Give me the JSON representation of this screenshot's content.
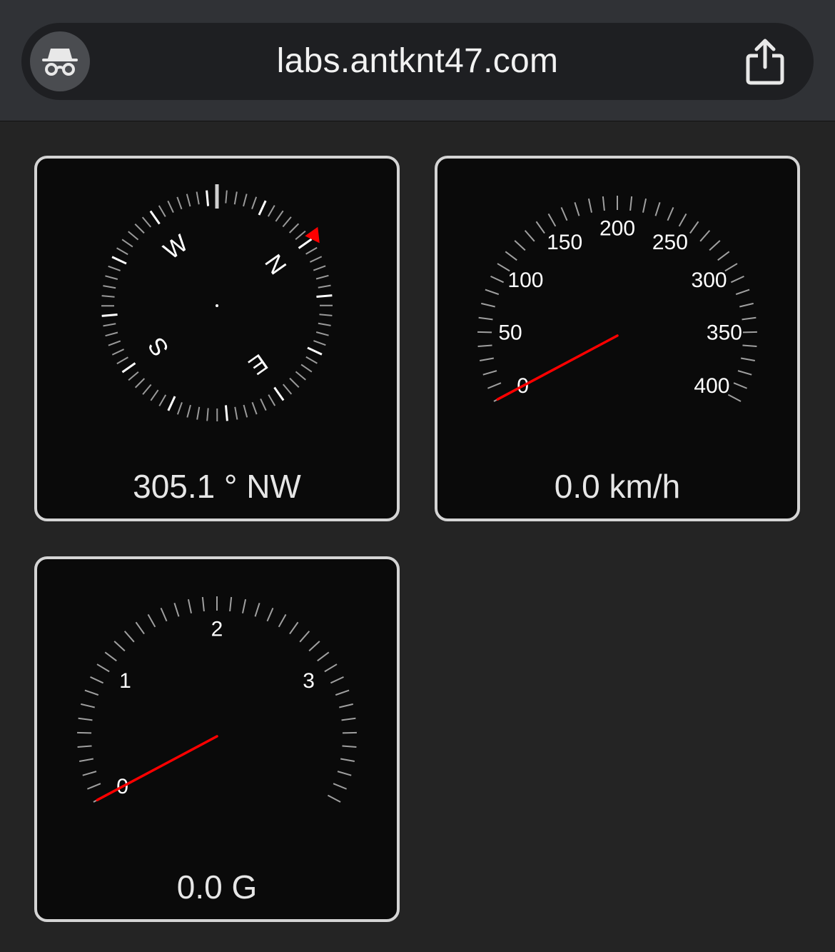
{
  "browser": {
    "url": "labs.antknt47.com",
    "left_icon": "incognito-icon",
    "right_icon": "share-icon"
  },
  "compass": {
    "heading_deg": 305.1,
    "readout": "305.1 ° NW",
    "cardinals": [
      "N",
      "E",
      "S",
      "W"
    ],
    "marker_color": "#ff0000"
  },
  "speedometer": {
    "value": 0.0,
    "unit": "km/h",
    "readout": "0.0 km/h",
    "min": 0,
    "max": 400,
    "labels": [
      "0",
      "50",
      "100",
      "150",
      "200",
      "250",
      "300",
      "350",
      "400"
    ],
    "needle_color": "#ff0000"
  },
  "gmeter": {
    "value": 0.0,
    "unit": "G",
    "readout": "0.0 G",
    "min": 0,
    "max": 4,
    "labels": [
      "0",
      "1",
      "2",
      "3"
    ],
    "needle_color": "#ff0000"
  }
}
